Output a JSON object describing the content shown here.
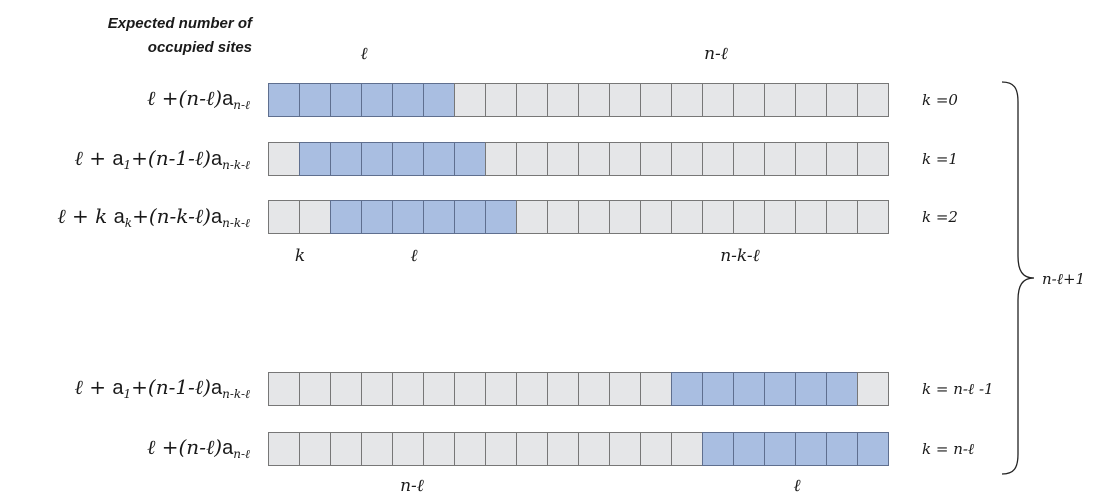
{
  "header": {
    "line1": "Expected number of",
    "line2": "occupied sites"
  },
  "rows": [
    {
      "formula_html": "&#8467; +(<i>n</i>-&#8467;)<span class=\"rm\">a</span><sub><i>n</i>-&#8467;</sub>",
      "k_label": "k =0",
      "occupied_start": 0,
      "occupied_length": 6
    },
    {
      "formula_html": "&#8467; + <span class=\"rm\">a</span><sub>1</sub>+(<i>n</i>-1-&#8467;)<span class=\"rm\">a</span><sub><i>n</i>-<i>k</i>-&#8467;</sub>",
      "k_label": "k =1",
      "occupied_start": 1,
      "occupied_length": 6
    },
    {
      "formula_html": "&#8467; + <i>k</i> <span class=\"rm\">a</span><sub><i>k</i></sub>+(<i>n</i>-<i>k</i>-&#8467;)<span class=\"rm\">a</span><sub><i>n</i>-<i>k</i>-&#8467;</sub>",
      "k_label": "k =2",
      "occupied_start": 2,
      "occupied_length": 6
    },
    {
      "formula_html": "&#8467; + <span class=\"rm\">a</span><sub>1</sub>+(<i>n</i>-1-&#8467;)<span class=\"rm\">a</span><sub><i>n</i>-<i>k</i>-&#8467;</sub>",
      "k_label": "k = n-ℓ -1",
      "occupied_start": 13,
      "occupied_length": 6
    },
    {
      "formula_html": "&#8467; +(<i>n</i>-&#8467;)<span class=\"rm\">a</span><sub><i>n</i>-&#8467;</sub>",
      "k_label": "k = n-ℓ",
      "occupied_start": 14,
      "occupied_length": 6
    }
  ],
  "total_sites": 20,
  "segment_labels": {
    "top_l": "ℓ",
    "top_n_minus_l": "n-ℓ",
    "mid_k": "k",
    "mid_l": "ℓ",
    "mid_n_minus_k_minus_l": "n-k-ℓ",
    "bottom_n_minus_l": "n-ℓ",
    "bottom_l": "ℓ"
  },
  "brace_label": "n-ℓ+1"
}
